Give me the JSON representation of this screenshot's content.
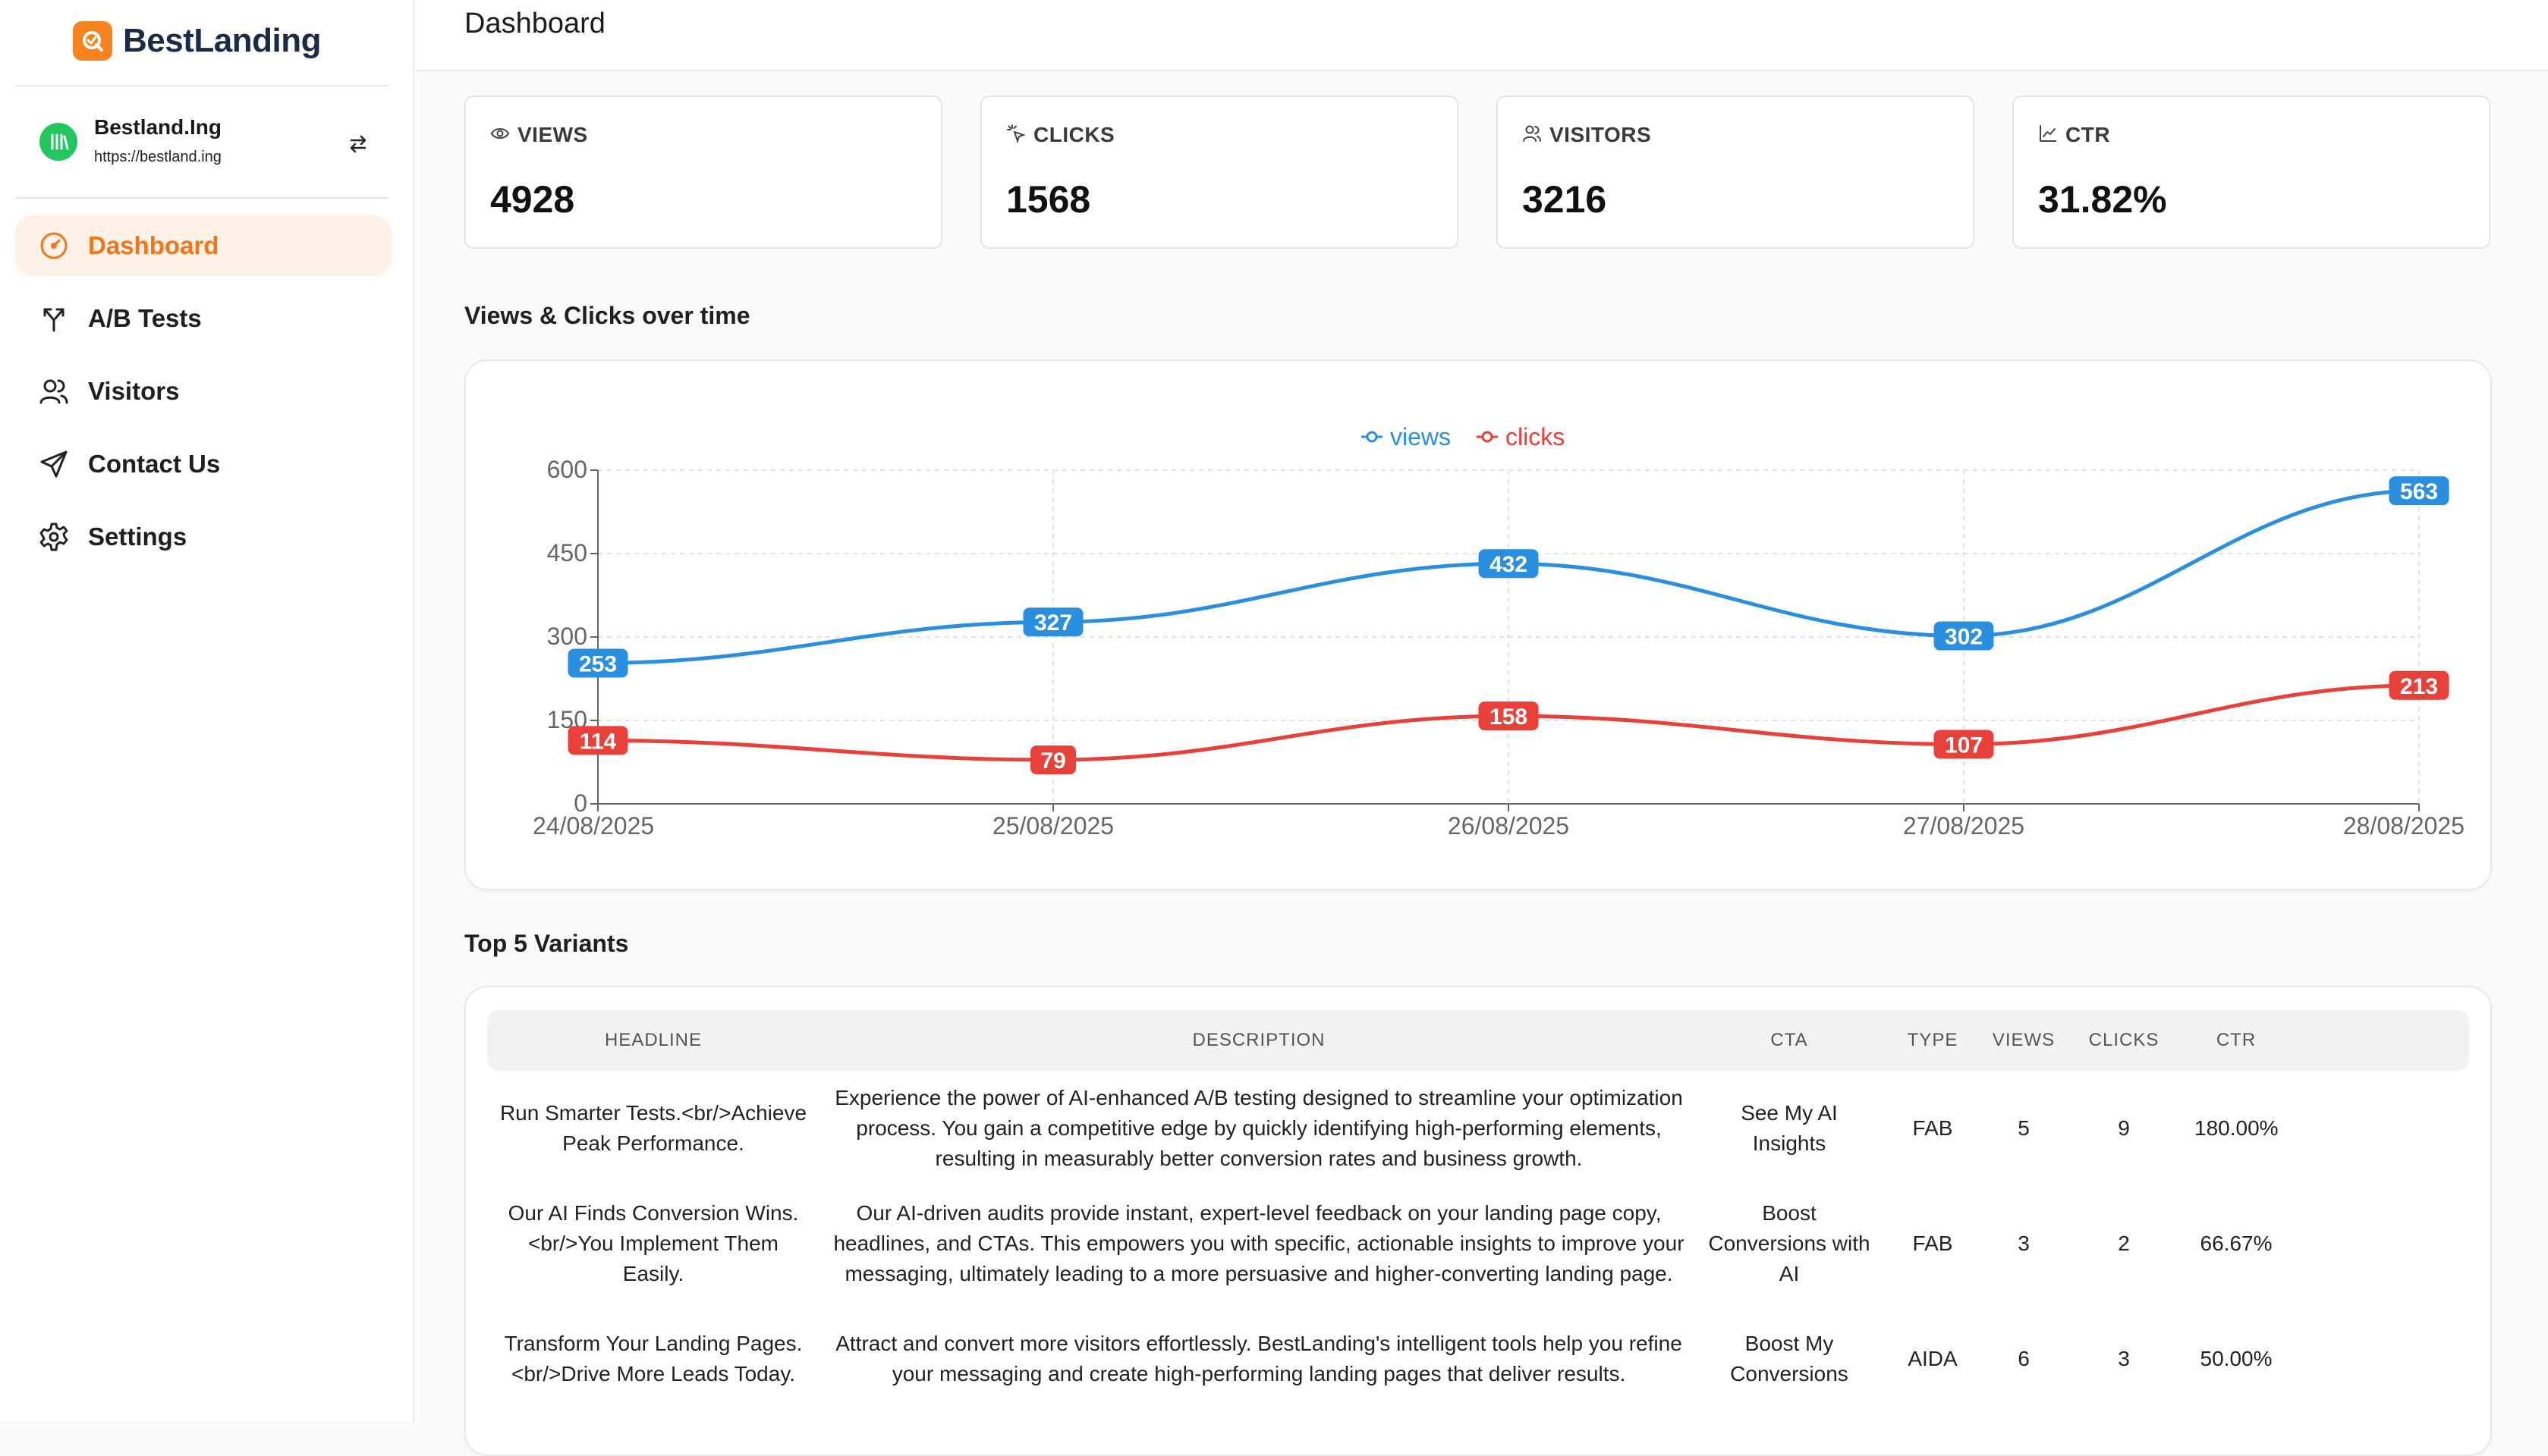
{
  "app": {
    "name": "BestLanding"
  },
  "site": {
    "name": "Bestland.Ing",
    "url": "https://bestland.ing"
  },
  "nav": [
    {
      "label": "Dashboard",
      "icon": "gauge-icon",
      "active": true
    },
    {
      "label": "A/B Tests",
      "icon": "split-arrows-icon",
      "active": false
    },
    {
      "label": "Visitors",
      "icon": "users-icon",
      "active": false
    },
    {
      "label": "Contact Us",
      "icon": "send-icon",
      "active": false
    },
    {
      "label": "Settings",
      "icon": "gear-icon",
      "active": false
    }
  ],
  "header": {
    "title": "Dashboard"
  },
  "stats": [
    {
      "label": "VIEWS",
      "value": "4928",
      "icon": "eye-icon"
    },
    {
      "label": "CLICKS",
      "value": "1568",
      "icon": "pointer-click-icon"
    },
    {
      "label": "VISITORS",
      "value": "3216",
      "icon": "users-icon"
    },
    {
      "label": "CTR",
      "value": "31.82%",
      "icon": "trend-icon"
    }
  ],
  "chart_section_title": "Views & Clicks over time",
  "chart_data": {
    "type": "line",
    "categories": [
      "24/08/2025",
      "25/08/2025",
      "26/08/2025",
      "27/08/2025",
      "28/08/2025"
    ],
    "series": [
      {
        "name": "views",
        "color": "#2b8fe0",
        "values": [
          253,
          327,
          432,
          302,
          563
        ]
      },
      {
        "name": "clicks",
        "color": "#e8413a",
        "values": [
          114,
          79,
          158,
          107,
          213
        ]
      }
    ],
    "ylim": [
      0,
      600
    ],
    "yticks": [
      0,
      150,
      300,
      450,
      600
    ],
    "grid": true,
    "legend": "top-center",
    "data_labels": true
  },
  "variants_title": "Top 5 Variants",
  "table": {
    "columns": [
      "HEADLINE",
      "DESCRIPTION",
      "CTA",
      "TYPE",
      "VIEWS",
      "CLICKS",
      "CTR"
    ],
    "rows": [
      [
        "Run Smarter Tests.<br/>Achieve Peak Performance.",
        "Experience the power of AI-enhanced A/B testing designed to streamline your optimization process. You gain a competitive edge by quickly identifying high-performing elements, resulting in measurably better conversion rates and business growth.",
        "See My AI Insights",
        "FAB",
        "5",
        "9",
        "180.00%"
      ],
      [
        "Our AI Finds Conversion Wins.<br/>You Implement Them Easily.",
        "Our AI-driven audits provide instant, expert-level feedback on your landing page copy, headlines, and CTAs. This empowers you with specific, actionable insights to improve your messaging, ultimately leading to a more persuasive and higher-converting landing page.",
        "Boost Conversions with AI",
        "FAB",
        "3",
        "2",
        "66.67%"
      ],
      [
        "Transform Your Landing Pages.<br/>Drive More Leads Today.",
        "Attract and convert more visitors effortlessly. BestLanding's intelligent tools help you refine your messaging and create high-performing landing pages that deliver results.",
        "Boost My Conversions",
        "AIDA",
        "6",
        "3",
        "50.00%"
      ]
    ]
  }
}
